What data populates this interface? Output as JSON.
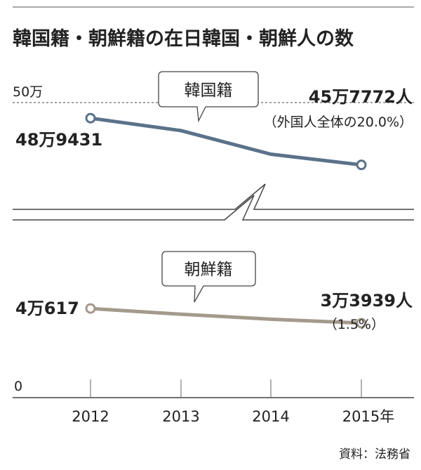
{
  "chart_data": {
    "type": "line",
    "title": "韓国籍・朝鮮籍の在日韓国・朝鮮人の数",
    "categories": [
      "2012",
      "2013",
      "2014",
      "2015年"
    ],
    "y_tick_labels": {
      "top": "50万",
      "bottom": "0"
    },
    "broken_axis": true,
    "series": [
      {
        "name": "韓国籍",
        "color": "#5a7289",
        "values": [
          489431,
          481000,
          465000,
          457772
        ],
        "start_label": "48万9431",
        "end_label": "45万7772人",
        "end_note": "（外国人全体の20.0%）"
      },
      {
        "name": "朝鮮籍",
        "color": "#a49a8c",
        "values": [
          40617,
          38000,
          35700,
          33939
        ],
        "start_label": "4万617",
        "end_label": "3万3939人",
        "end_note": "（1.5%）"
      }
    ],
    "source": "資料：法務省"
  }
}
